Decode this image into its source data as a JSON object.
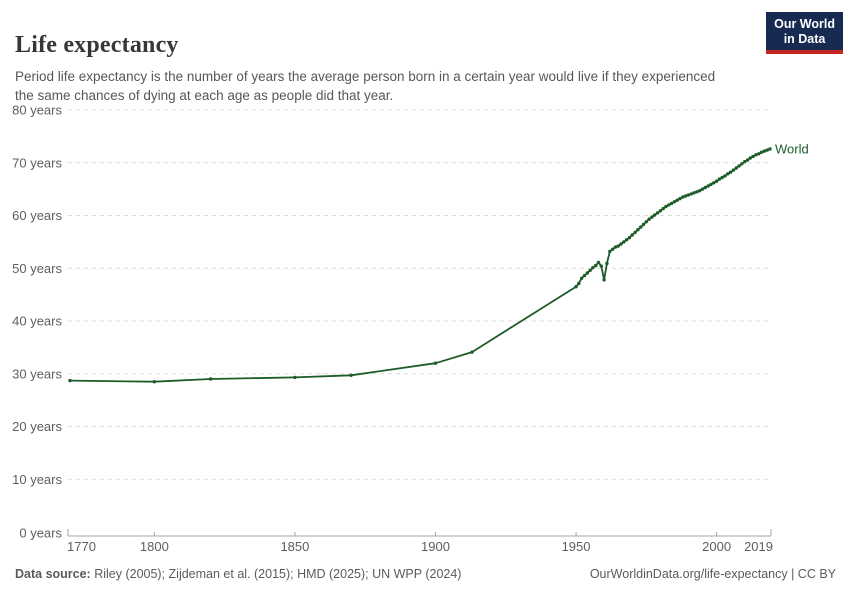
{
  "header": {
    "title": "Life expectancy",
    "subtitle": "Period life expectancy is the number of years the average person born in a certain year would live if they experienced the same chances of dying at each age as people did that year.",
    "logo": {
      "line1": "Our World",
      "line2": "in Data"
    }
  },
  "chart_data": {
    "type": "line",
    "title": "Life expectancy",
    "xlabel": "",
    "ylabel": "",
    "xlim": [
      1770,
      2019
    ],
    "ylim": [
      0,
      80
    ],
    "grid": "horizontal-dashed",
    "legend_position": "end-of-line-label",
    "x_ticks": [
      1770,
      1800,
      1850,
      1900,
      1950,
      2000,
      2019
    ],
    "y_ticks": [
      0,
      10,
      20,
      30,
      40,
      50,
      60,
      70,
      80
    ],
    "y_tick_suffix": " years",
    "line_color": "#1D5C29",
    "grid_color": "#dcdcdc",
    "axis_color": "#a5a5a5",
    "tick_color": "#5e5e5e",
    "series": [
      {
        "name": "World",
        "points": [
          [
            1770,
            28.7
          ],
          [
            1800,
            28.5
          ],
          [
            1820,
            29.0
          ],
          [
            1850,
            29.3
          ],
          [
            1870,
            29.7
          ],
          [
            1900,
            32.0
          ],
          [
            1913,
            34.1
          ],
          [
            1950,
            46.5
          ],
          [
            1951,
            47.1
          ],
          [
            1952,
            48.1
          ],
          [
            1953,
            48.6
          ],
          [
            1954,
            49.1
          ],
          [
            1955,
            49.6
          ],
          [
            1956,
            50.1
          ],
          [
            1957,
            50.5
          ],
          [
            1958,
            51.1
          ],
          [
            1959,
            50.4
          ],
          [
            1960,
            47.8
          ],
          [
            1961,
            50.9
          ],
          [
            1962,
            53.2
          ],
          [
            1963,
            53.6
          ],
          [
            1964,
            54.0
          ],
          [
            1965,
            54.2
          ],
          [
            1966,
            54.6
          ],
          [
            1967,
            55.0
          ],
          [
            1968,
            55.4
          ],
          [
            1969,
            55.8
          ],
          [
            1970,
            56.3
          ],
          [
            1971,
            56.8
          ],
          [
            1972,
            57.3
          ],
          [
            1973,
            57.8
          ],
          [
            1974,
            58.3
          ],
          [
            1975,
            58.8
          ],
          [
            1976,
            59.3
          ],
          [
            1977,
            59.7
          ],
          [
            1978,
            60.1
          ],
          [
            1979,
            60.5
          ],
          [
            1980,
            60.9
          ],
          [
            1981,
            61.3
          ],
          [
            1982,
            61.7
          ],
          [
            1983,
            62.0
          ],
          [
            1984,
            62.3
          ],
          [
            1985,
            62.6
          ],
          [
            1986,
            62.9
          ],
          [
            1987,
            63.2
          ],
          [
            1988,
            63.5
          ],
          [
            1989,
            63.7
          ],
          [
            1990,
            63.9
          ],
          [
            1991,
            64.1
          ],
          [
            1992,
            64.3
          ],
          [
            1993,
            64.5
          ],
          [
            1994,
            64.7
          ],
          [
            1995,
            65.0
          ],
          [
            1996,
            65.3
          ],
          [
            1997,
            65.6
          ],
          [
            1998,
            65.9
          ],
          [
            1999,
            66.2
          ],
          [
            2000,
            66.5
          ],
          [
            2001,
            66.9
          ],
          [
            2002,
            67.2
          ],
          [
            2003,
            67.5
          ],
          [
            2004,
            67.9
          ],
          [
            2005,
            68.2
          ],
          [
            2006,
            68.6
          ],
          [
            2007,
            69.0
          ],
          [
            2008,
            69.4
          ],
          [
            2009,
            69.8
          ],
          [
            2010,
            70.2
          ],
          [
            2011,
            70.5
          ],
          [
            2012,
            70.9
          ],
          [
            2013,
            71.2
          ],
          [
            2014,
            71.5
          ],
          [
            2015,
            71.7
          ],
          [
            2016,
            72.0
          ],
          [
            2017,
            72.2
          ],
          [
            2018,
            72.4
          ],
          [
            2019,
            72.6
          ]
        ]
      }
    ]
  },
  "footer": {
    "source_label": "Data source:",
    "source_text": " Riley (2005); Zijdeman et al. (2015); HMD (2025); UN WPP (2024)",
    "link_text": "OurWorldinData.org/life-expectancy | CC BY"
  }
}
